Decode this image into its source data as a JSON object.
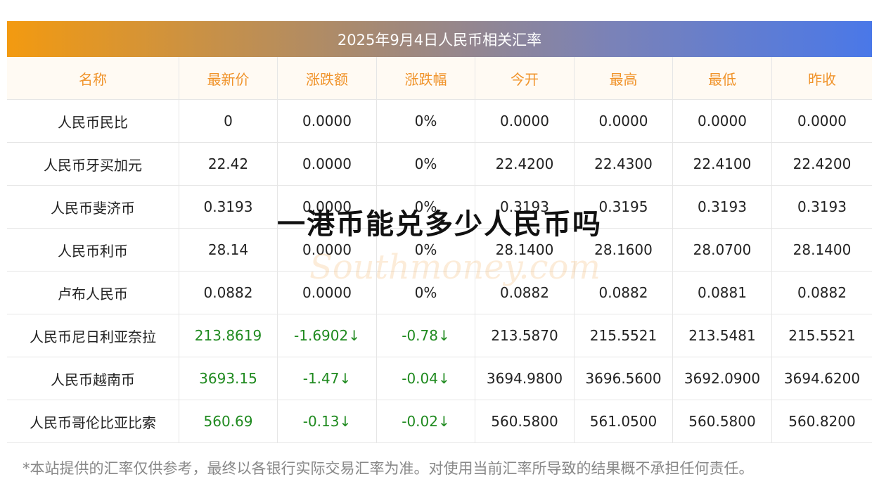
{
  "header": {
    "title": "2025年9月4日人民币相关汇率"
  },
  "table": {
    "columns": [
      "名称",
      "最新价",
      "涨跌额",
      "涨跌幅",
      "今开",
      "最高",
      "最低",
      "昨收"
    ],
    "rows": [
      [
        "人民币民比",
        "0",
        "0.0000",
        "0%",
        "0.0000",
        "0.0000",
        "0.0000",
        "0.0000"
      ],
      [
        "人民币牙买加元",
        "22.42",
        "0.0000",
        "0%",
        "22.4200",
        "22.4300",
        "22.4100",
        "22.4200"
      ],
      [
        "人民币斐济币",
        "0.3193",
        "0.0000",
        "0%",
        "0.3193",
        "0.3195",
        "0.3193",
        "0.3193"
      ],
      [
        "人民币利币",
        "28.14",
        "0.0000",
        "0%",
        "28.1400",
        "28.1600",
        "28.0700",
        "28.1400"
      ],
      [
        "卢布人民币",
        "0.0882",
        "0.0000",
        "0%",
        "0.0882",
        "0.0882",
        "0.0881",
        "0.0882"
      ],
      [
        "人民币尼日利亚奈拉",
        "213.8619",
        "-1.6902↓",
        "-0.78↓",
        "213.5870",
        "215.5521",
        "213.5481",
        "215.5521"
      ],
      [
        "人民币越南币",
        "3693.15",
        "-1.47↓",
        "-0.04↓",
        "3694.9800",
        "3696.5600",
        "3692.0900",
        "3694.6200"
      ],
      [
        "人民币哥伦比亚比索",
        "560.69",
        "-0.13↓",
        "-0.02↓",
        "560.5800",
        "561.0500",
        "560.5800",
        "560.8200"
      ]
    ]
  },
  "overlay": {
    "headline": "一港币能兑多少人民币吗",
    "watermark": "Southmoney.com"
  },
  "footnote": "*本站提供的汇率仅供参考，最终以各银行实际交易汇率为准。对使用当前汇率所导致的结果概不承担任何责任。"
}
